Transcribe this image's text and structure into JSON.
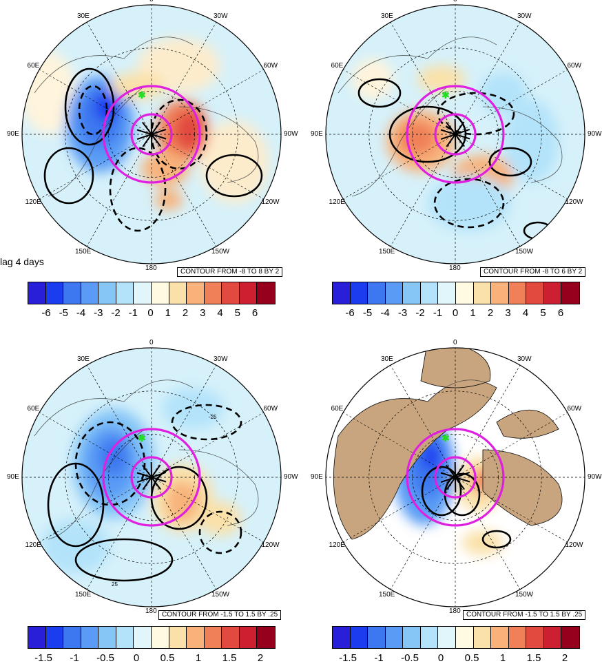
{
  "lag_label": "lag 4 days",
  "panels": [
    {
      "id": "top-left",
      "contour_text": "CONTOUR FROM -8 TO 8 BY 2",
      "land_filled": false,
      "colorbar": {
        "ticks": [
          "-6",
          "-5",
          "-4",
          "-3",
          "-2",
          "-1",
          "0",
          "1",
          "2",
          "3",
          "4",
          "5",
          "6"
        ],
        "colors": [
          "#2a1fd9",
          "#1a3df0",
          "#3e78f0",
          "#5a9cf5",
          "#86c6f7",
          "#b3e3fa",
          "#e1f6fb",
          "#fffbe3",
          "#fae1a9",
          "#f8b27a",
          "#f08058",
          "#e24a3f",
          "#cc2030",
          "#96001c"
        ]
      }
    },
    {
      "id": "top-right",
      "contour_text": "CONTOUR FROM -8 TO 6 BY 2",
      "land_filled": false,
      "colorbar": {
        "ticks": [
          "-6",
          "-5",
          "-4",
          "-3",
          "-2",
          "-1",
          "0",
          "1",
          "2",
          "3",
          "4",
          "5",
          "6"
        ],
        "colors": [
          "#2a1fd9",
          "#1a3df0",
          "#3e78f0",
          "#5a9cf5",
          "#86c6f7",
          "#b3e3fa",
          "#e1f6fb",
          "#fffbe3",
          "#fae1a9",
          "#f8b27a",
          "#f08058",
          "#e24a3f",
          "#cc2030",
          "#96001c"
        ]
      }
    },
    {
      "id": "bottom-left",
      "contour_text": "CONTOUR FROM -1.5 TO 1.5 BY .25",
      "land_filled": false,
      "colorbar": {
        "ticks": [
          "-1.5",
          "-1",
          "-0.5",
          "0",
          "0.5",
          "1",
          "1.5",
          "2"
        ],
        "colors": [
          "#2a1fd9",
          "#1a3df0",
          "#3e78f0",
          "#5a9cf5",
          "#86c6f7",
          "#b3e3fa",
          "#e1f6fb",
          "#fffbe3",
          "#fae1a9",
          "#f8b27a",
          "#f08058",
          "#e24a3f",
          "#cc2030",
          "#96001c"
        ]
      }
    },
    {
      "id": "bottom-right",
      "contour_text": "CONTOUR FROM -1.5 TO 1.5 BY .25",
      "land_filled": true,
      "colorbar": {
        "ticks": [
          "-1.5",
          "-1",
          "-0.5",
          "0",
          "0.5",
          "1",
          "1.5",
          "2"
        ],
        "colors": [
          "#2a1fd9",
          "#1a3df0",
          "#3e78f0",
          "#5a9cf5",
          "#86c6f7",
          "#b3e3fa",
          "#e1f6fb",
          "#fffbe3",
          "#fae1a9",
          "#f8b27a",
          "#f08058",
          "#e24a3f",
          "#cc2030",
          "#96001c"
        ]
      }
    }
  ],
  "longitude_labels": [
    "0",
    "30W",
    "60W",
    "90W",
    "120W",
    "150W",
    "180",
    "150E",
    "120E",
    "90E",
    "60E",
    "30E"
  ],
  "inline_labels": [
    "-25",
    "25"
  ],
  "colors": {
    "ring": "#e020e0",
    "land": "#c8a57e",
    "marker": "#22dd22",
    "ocean_light": "#d6f1fa"
  }
}
